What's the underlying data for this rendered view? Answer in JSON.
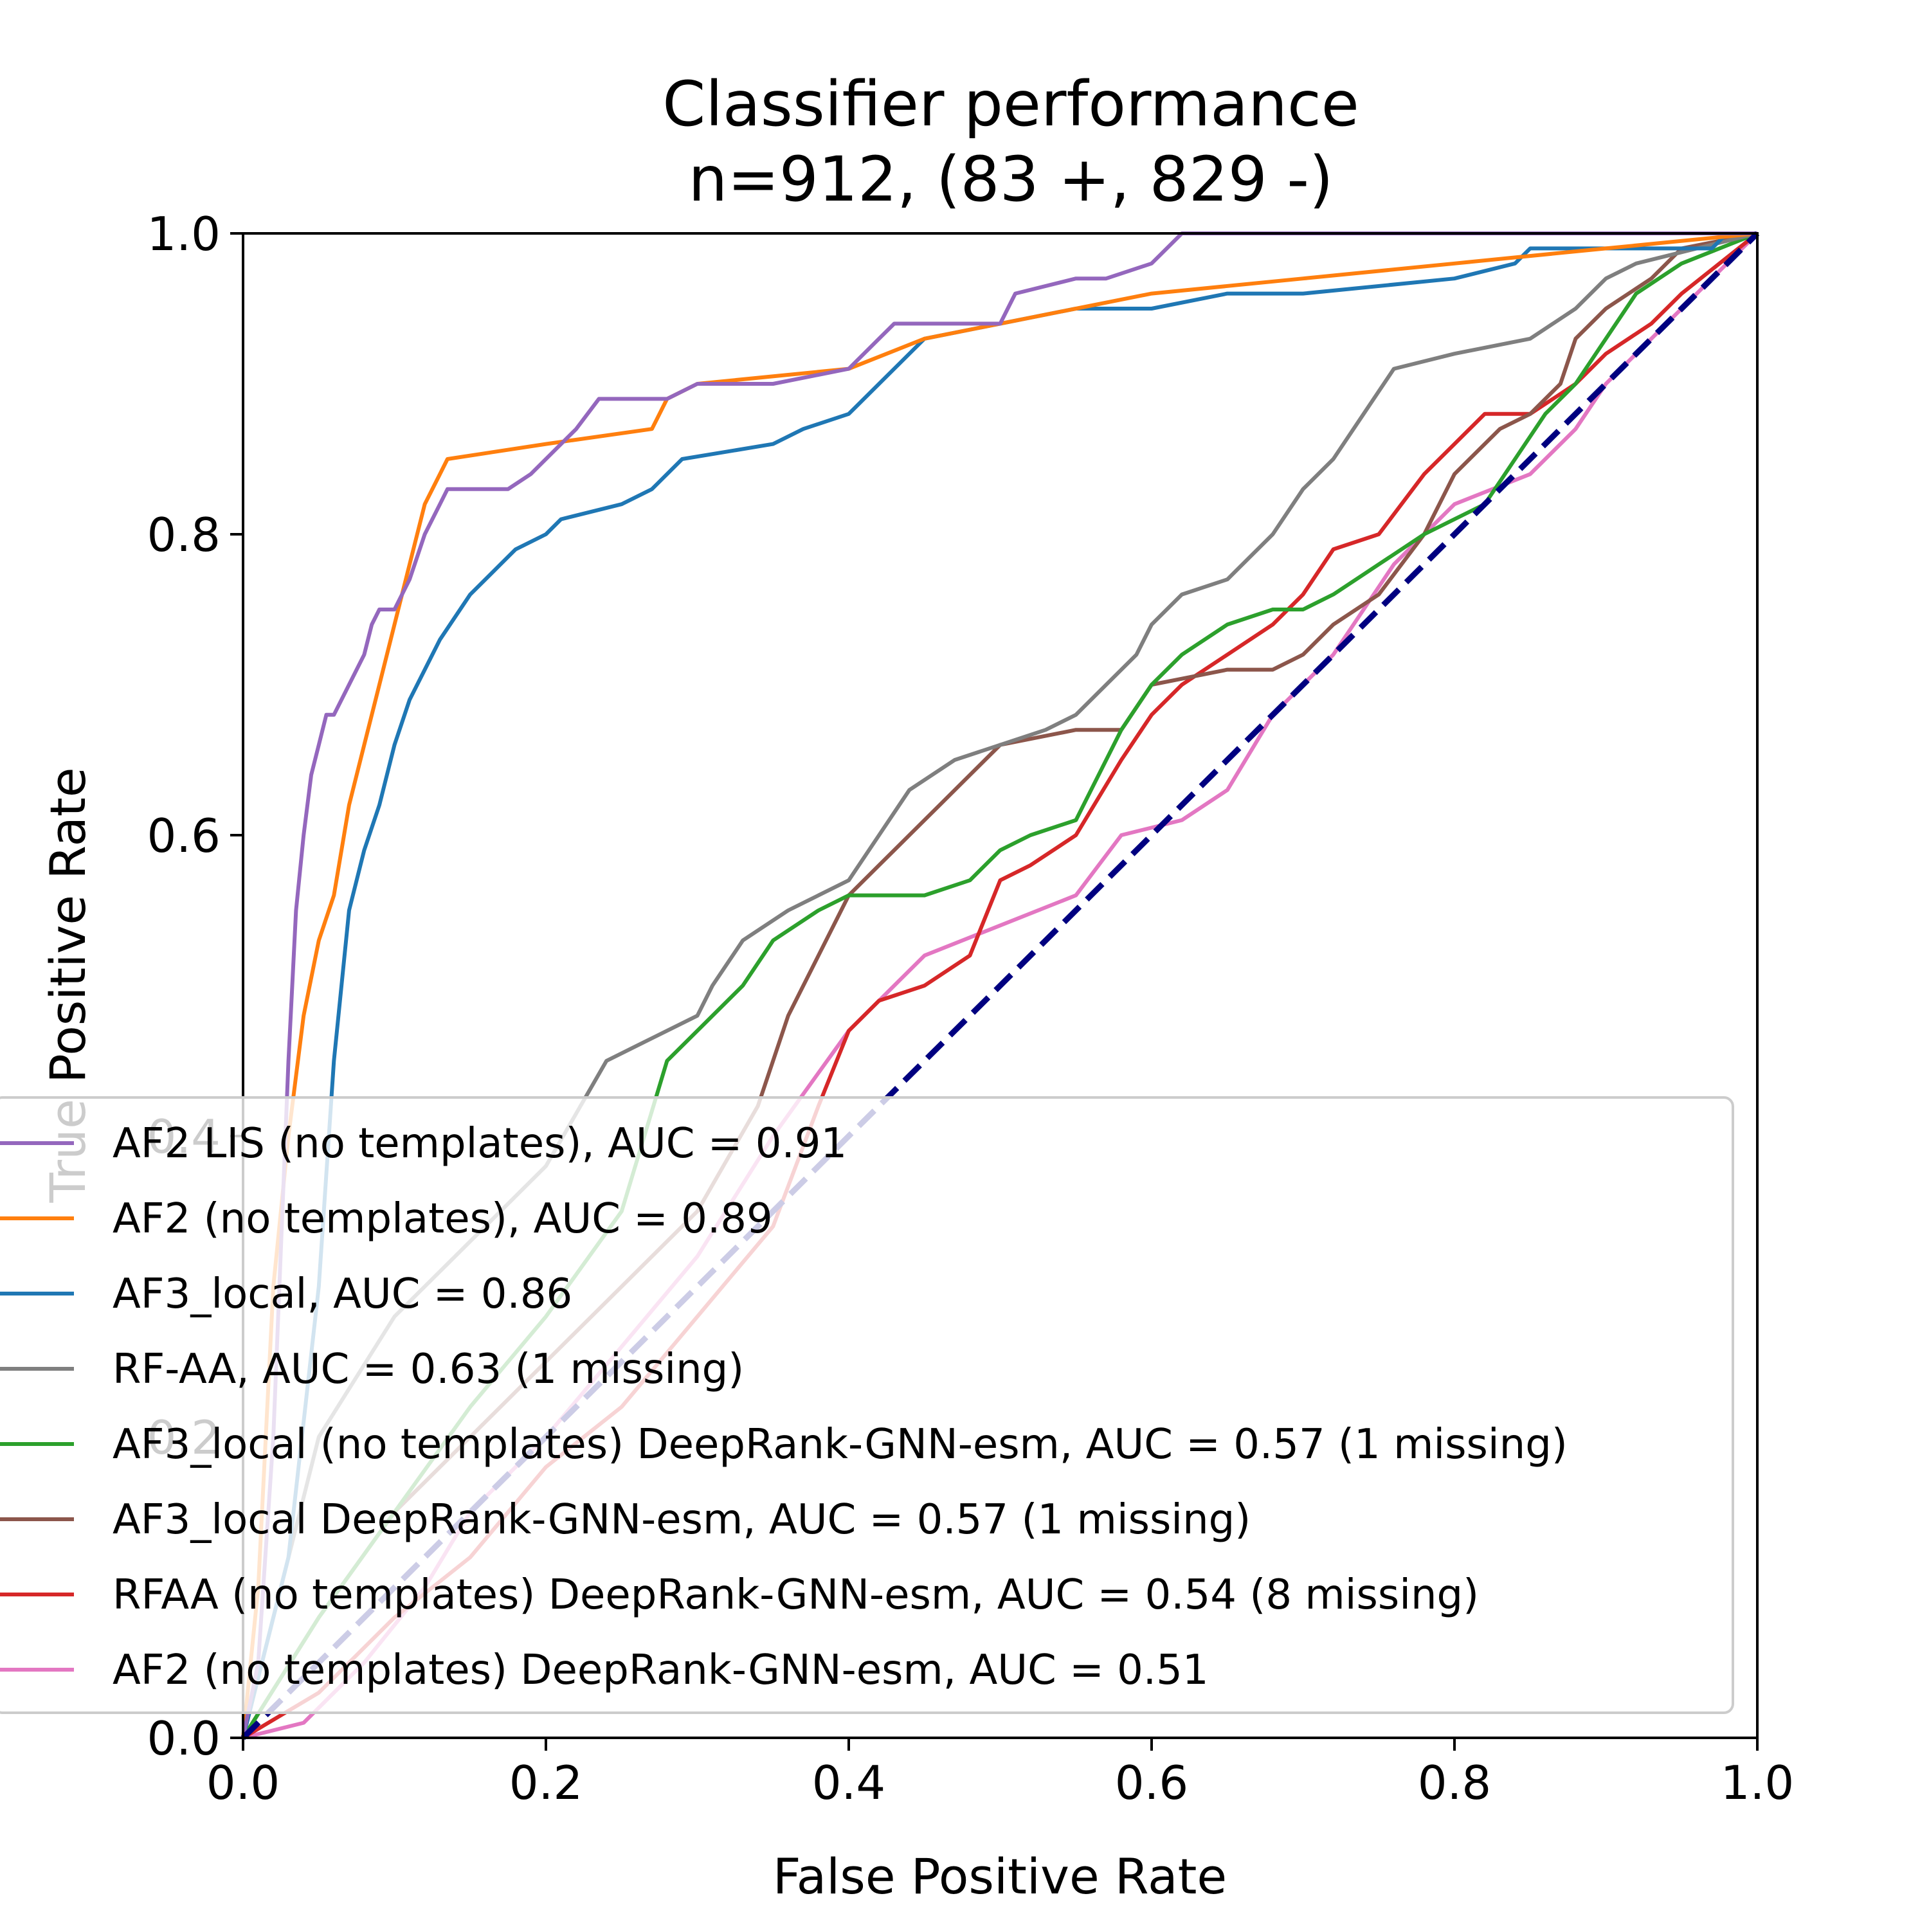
{
  "chart_data": {
    "type": "line",
    "title": "Classifier performance",
    "subtitle": "n=912, (83 +, 829 -)",
    "xlabel": "False Positive Rate",
    "ylabel": "True Positive Rate",
    "xlim": [
      0.0,
      1.0
    ],
    "ylim": [
      0.0,
      1.0
    ],
    "xticks": [
      "0.0",
      "0.2",
      "0.4",
      "0.6",
      "0.8",
      "1.0"
    ],
    "yticks": [
      "0.0",
      "0.2",
      "0.4",
      "0.6",
      "0.8",
      "1.0"
    ],
    "grid": false,
    "legend_position": "lower-left",
    "reference_line": {
      "x": [
        0,
        1
      ],
      "y": [
        0,
        1
      ],
      "color": "#000080",
      "style": "dashed"
    },
    "series": [
      {
        "name": "AF2 LIS (no templates), AUC = 0.91",
        "color": "#9467bd",
        "x": [
          0,
          0.01,
          0.02,
          0.03,
          0.035,
          0.04,
          0.045,
          0.05,
          0.055,
          0.06,
          0.075,
          0.08,
          0.085,
          0.09,
          0.1,
          0.11,
          0.12,
          0.13,
          0.135,
          0.145,
          0.175,
          0.19,
          0.2,
          0.21,
          0.22,
          0.235,
          0.255,
          0.28,
          0.3,
          0.35,
          0.4,
          0.41,
          0.42,
          0.43,
          0.5,
          0.51,
          0.55,
          0.57,
          0.6,
          0.62,
          0.7,
          0.8,
          1.0
        ],
        "y": [
          0,
          0.05,
          0.2,
          0.45,
          0.55,
          0.6,
          0.64,
          0.66,
          0.68,
          0.68,
          0.71,
          0.72,
          0.74,
          0.75,
          0.75,
          0.77,
          0.8,
          0.82,
          0.83,
          0.83,
          0.83,
          0.84,
          0.85,
          0.86,
          0.87,
          0.89,
          0.89,
          0.89,
          0.9,
          0.9,
          0.91,
          0.92,
          0.93,
          0.94,
          0.94,
          0.96,
          0.97,
          0.97,
          0.98,
          1.0,
          1.0,
          1.0,
          1.0
        ]
      },
      {
        "name": "AF2 (no templates), AUC = 0.89",
        "color": "#ff7f0e",
        "x": [
          0,
          0.01,
          0.02,
          0.03,
          0.04,
          0.05,
          0.06,
          0.07,
          0.08,
          0.09,
          0.1,
          0.11,
          0.12,
          0.13,
          0.135,
          0.2,
          0.27,
          0.28,
          0.3,
          0.4,
          0.45,
          0.5,
          0.55,
          0.6,
          0.7,
          0.8,
          0.9,
          1.0
        ],
        "y": [
          0,
          0.1,
          0.3,
          0.4,
          0.48,
          0.53,
          0.56,
          0.62,
          0.66,
          0.7,
          0.74,
          0.78,
          0.82,
          0.84,
          0.85,
          0.86,
          0.87,
          0.89,
          0.9,
          0.91,
          0.93,
          0.94,
          0.95,
          0.96,
          0.97,
          0.98,
          0.99,
          1.0
        ]
      },
      {
        "name": "AF3_local, AUC = 0.86",
        "color": "#1f77b4",
        "x": [
          0,
          0.03,
          0.05,
          0.06,
          0.07,
          0.08,
          0.09,
          0.1,
          0.11,
          0.12,
          0.13,
          0.15,
          0.17,
          0.18,
          0.2,
          0.21,
          0.25,
          0.27,
          0.28,
          0.29,
          0.35,
          0.37,
          0.4,
          0.42,
          0.45,
          0.5,
          0.55,
          0.6,
          0.65,
          0.7,
          0.8,
          0.84,
          0.85,
          0.9,
          0.97,
          0.98,
          1.0
        ],
        "y": [
          0,
          0.12,
          0.3,
          0.45,
          0.55,
          0.59,
          0.62,
          0.66,
          0.69,
          0.71,
          0.73,
          0.76,
          0.78,
          0.79,
          0.8,
          0.81,
          0.82,
          0.83,
          0.84,
          0.85,
          0.86,
          0.87,
          0.88,
          0.9,
          0.93,
          0.94,
          0.95,
          0.95,
          0.96,
          0.96,
          0.97,
          0.98,
          0.99,
          0.99,
          0.99,
          1.0,
          1.0
        ]
      },
      {
        "name": "RF-AA, AUC = 0.63 (1 missing)",
        "color": "#7f7f7f",
        "x": [
          0,
          0.05,
          0.1,
          0.15,
          0.2,
          0.24,
          0.26,
          0.28,
          0.3,
          0.31,
          0.33,
          0.36,
          0.38,
          0.4,
          0.42,
          0.44,
          0.47,
          0.5,
          0.53,
          0.55,
          0.57,
          0.59,
          0.6,
          0.62,
          0.65,
          0.68,
          0.7,
          0.72,
          0.74,
          0.76,
          0.8,
          0.85,
          0.88,
          0.9,
          0.92,
          1.0
        ],
        "y": [
          0,
          0.2,
          0.28,
          0.33,
          0.38,
          0.45,
          0.46,
          0.47,
          0.48,
          0.5,
          0.53,
          0.55,
          0.56,
          0.57,
          0.6,
          0.63,
          0.65,
          0.66,
          0.67,
          0.68,
          0.7,
          0.72,
          0.74,
          0.76,
          0.77,
          0.8,
          0.83,
          0.85,
          0.88,
          0.91,
          0.92,
          0.93,
          0.95,
          0.97,
          0.98,
          1.0
        ]
      },
      {
        "name": "AF3_local (no templates) DeepRank-GNN-esm, AUC = 0.57 (1 missing)",
        "color": "#2ca02c",
        "x": [
          0,
          0.05,
          0.1,
          0.15,
          0.2,
          0.25,
          0.28,
          0.3,
          0.33,
          0.35,
          0.38,
          0.4,
          0.45,
          0.48,
          0.5,
          0.52,
          0.55,
          0.56,
          0.58,
          0.6,
          0.62,
          0.65,
          0.68,
          0.7,
          0.72,
          0.75,
          0.78,
          0.8,
          0.82,
          0.84,
          0.86,
          0.88,
          0.9,
          0.92,
          0.95,
          1.0
        ],
        "y": [
          0,
          0.08,
          0.15,
          0.22,
          0.28,
          0.35,
          0.45,
          0.47,
          0.5,
          0.53,
          0.55,
          0.56,
          0.56,
          0.57,
          0.59,
          0.6,
          0.61,
          0.63,
          0.67,
          0.7,
          0.72,
          0.74,
          0.75,
          0.75,
          0.76,
          0.78,
          0.8,
          0.81,
          0.82,
          0.85,
          0.88,
          0.9,
          0.93,
          0.96,
          0.98,
          1.0
        ]
      },
      {
        "name": "AF3_local DeepRank-GNN-esm, AUC = 0.57 (1 missing)",
        "color": "#8c564b",
        "x": [
          0,
          0.05,
          0.1,
          0.15,
          0.2,
          0.25,
          0.3,
          0.34,
          0.36,
          0.38,
          0.4,
          0.42,
          0.44,
          0.46,
          0.48,
          0.5,
          0.55,
          0.58,
          0.6,
          0.65,
          0.68,
          0.7,
          0.72,
          0.75,
          0.78,
          0.8,
          0.83,
          0.85,
          0.87,
          0.88,
          0.9,
          0.93,
          0.95,
          1.0
        ],
        "y": [
          0,
          0.08,
          0.15,
          0.2,
          0.25,
          0.3,
          0.35,
          0.42,
          0.48,
          0.52,
          0.56,
          0.58,
          0.6,
          0.62,
          0.64,
          0.66,
          0.67,
          0.67,
          0.7,
          0.71,
          0.71,
          0.72,
          0.74,
          0.76,
          0.8,
          0.84,
          0.87,
          0.88,
          0.9,
          0.93,
          0.95,
          0.97,
          0.99,
          1.0
        ]
      },
      {
        "name": "RFAA (no templates) DeepRank-GNN-esm, AUC = 0.54 (8 missing)",
        "color": "#d62728",
        "x": [
          0,
          0.05,
          0.1,
          0.15,
          0.2,
          0.25,
          0.3,
          0.35,
          0.38,
          0.4,
          0.42,
          0.45,
          0.48,
          0.5,
          0.52,
          0.55,
          0.58,
          0.6,
          0.62,
          0.65,
          0.68,
          0.7,
          0.72,
          0.75,
          0.78,
          0.8,
          0.82,
          0.85,
          0.88,
          0.9,
          0.93,
          0.95,
          1.0
        ],
        "y": [
          0,
          0.03,
          0.08,
          0.12,
          0.18,
          0.22,
          0.28,
          0.34,
          0.42,
          0.47,
          0.49,
          0.5,
          0.52,
          0.57,
          0.58,
          0.6,
          0.65,
          0.68,
          0.7,
          0.72,
          0.74,
          0.76,
          0.79,
          0.8,
          0.84,
          0.86,
          0.88,
          0.88,
          0.9,
          0.92,
          0.94,
          0.96,
          1.0
        ]
      },
      {
        "name": "AF2 (no templates) DeepRank-GNN-esm, AUC = 0.51",
        "color": "#e377c2",
        "x": [
          0,
          0.04,
          0.08,
          0.12,
          0.15,
          0.2,
          0.25,
          0.3,
          0.35,
          0.4,
          0.45,
          0.5,
          0.55,
          0.58,
          0.62,
          0.65,
          0.68,
          0.7,
          0.72,
          0.74,
          0.76,
          0.78,
          0.8,
          0.85,
          0.88,
          0.9,
          0.92,
          0.95,
          0.98,
          1.0
        ],
        "y": [
          0,
          0.01,
          0.05,
          0.1,
          0.15,
          0.2,
          0.26,
          0.32,
          0.4,
          0.47,
          0.52,
          0.54,
          0.56,
          0.6,
          0.61,
          0.63,
          0.68,
          0.7,
          0.72,
          0.75,
          0.78,
          0.8,
          0.82,
          0.84,
          0.87,
          0.9,
          0.92,
          0.95,
          0.98,
          1.0
        ]
      }
    ]
  }
}
